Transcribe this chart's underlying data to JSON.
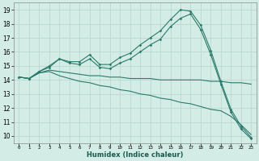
{
  "title": "",
  "xlabel": "Humidex (Indice chaleur)",
  "bg_color": "#d4ece6",
  "grid_color": "#b8d8d0",
  "line_color": "#2a7a6a",
  "xlim": [
    -0.5,
    23.5
  ],
  "ylim": [
    9.5,
    19.5
  ],
  "xticks": [
    0,
    1,
    2,
    3,
    4,
    5,
    6,
    7,
    8,
    9,
    10,
    11,
    12,
    13,
    14,
    15,
    16,
    17,
    18,
    19,
    20,
    21,
    22,
    23
  ],
  "yticks": [
    10,
    11,
    12,
    13,
    14,
    15,
    16,
    17,
    18,
    19
  ],
  "series": [
    {
      "x": [
        0,
        1,
        2,
        3,
        4,
        5,
        6,
        7,
        8,
        9,
        10,
        11,
        12,
        13,
        14,
        15,
        16,
        17,
        18,
        19,
        20,
        21,
        22,
        23
      ],
      "y": [
        14.2,
        14.1,
        14.6,
        15.0,
        15.5,
        15.3,
        15.3,
        15.8,
        15.1,
        15.1,
        15.6,
        15.9,
        16.5,
        17.0,
        17.5,
        18.3,
        19.0,
        18.9,
        17.9,
        16.1,
        13.9,
        11.9,
        10.7,
        9.9
      ],
      "marker": true
    },
    {
      "x": [
        0,
        1,
        2,
        3,
        4,
        5,
        6,
        7,
        8,
        9,
        10,
        11,
        12,
        13,
        14,
        15,
        16,
        17,
        18,
        19,
        20,
        21,
        22,
        23
      ],
      "y": [
        14.2,
        14.1,
        14.6,
        14.9,
        15.5,
        15.2,
        15.1,
        15.5,
        14.9,
        14.8,
        15.2,
        15.5,
        16.0,
        16.5,
        16.9,
        17.8,
        18.4,
        18.7,
        17.6,
        15.8,
        13.7,
        11.7,
        10.5,
        9.8
      ],
      "marker": true
    },
    {
      "x": [
        0,
        1,
        2,
        3,
        4,
        5,
        6,
        7,
        8,
        9,
        10,
        11,
        12,
        13,
        14,
        15,
        16,
        17,
        18,
        19,
        20,
        21,
        22,
        23
      ],
      "y": [
        14.2,
        14.1,
        14.5,
        14.7,
        14.6,
        14.5,
        14.4,
        14.3,
        14.3,
        14.2,
        14.2,
        14.1,
        14.1,
        14.1,
        14.0,
        14.0,
        14.0,
        14.0,
        14.0,
        13.9,
        13.9,
        13.8,
        13.8,
        13.7
      ],
      "marker": false
    },
    {
      "x": [
        0,
        1,
        2,
        3,
        4,
        5,
        6,
        7,
        8,
        9,
        10,
        11,
        12,
        13,
        14,
        15,
        16,
        17,
        18,
        19,
        20,
        21,
        22,
        23
      ],
      "y": [
        14.2,
        14.1,
        14.5,
        14.6,
        14.3,
        14.1,
        13.9,
        13.8,
        13.6,
        13.5,
        13.3,
        13.2,
        13.0,
        12.9,
        12.7,
        12.6,
        12.4,
        12.3,
        12.1,
        11.9,
        11.8,
        11.4,
        10.8,
        10.1
      ],
      "marker": false
    }
  ]
}
